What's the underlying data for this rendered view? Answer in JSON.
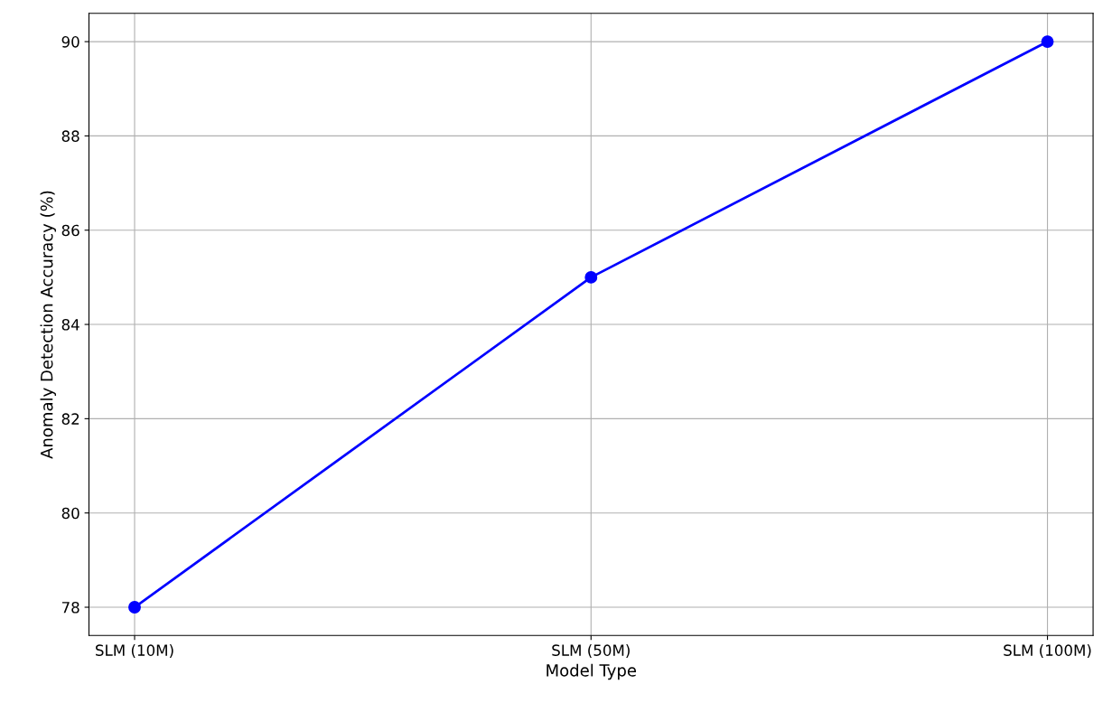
{
  "chart_data": {
    "type": "line",
    "xlabel": "Model Type",
    "ylabel": "Anomaly Detection Accuracy (%)",
    "categories": [
      "SLM (10M)",
      "SLM (50M)",
      "SLM (100M)"
    ],
    "series": [
      {
        "color": "#0000ff",
        "values": [
          78,
          85,
          90
        ]
      }
    ],
    "ylim": [
      77.4,
      90.6
    ],
    "yticks": [
      78,
      80,
      82,
      84,
      86,
      88,
      90
    ],
    "grid": true,
    "marker": "circle",
    "line_style": "solid"
  }
}
